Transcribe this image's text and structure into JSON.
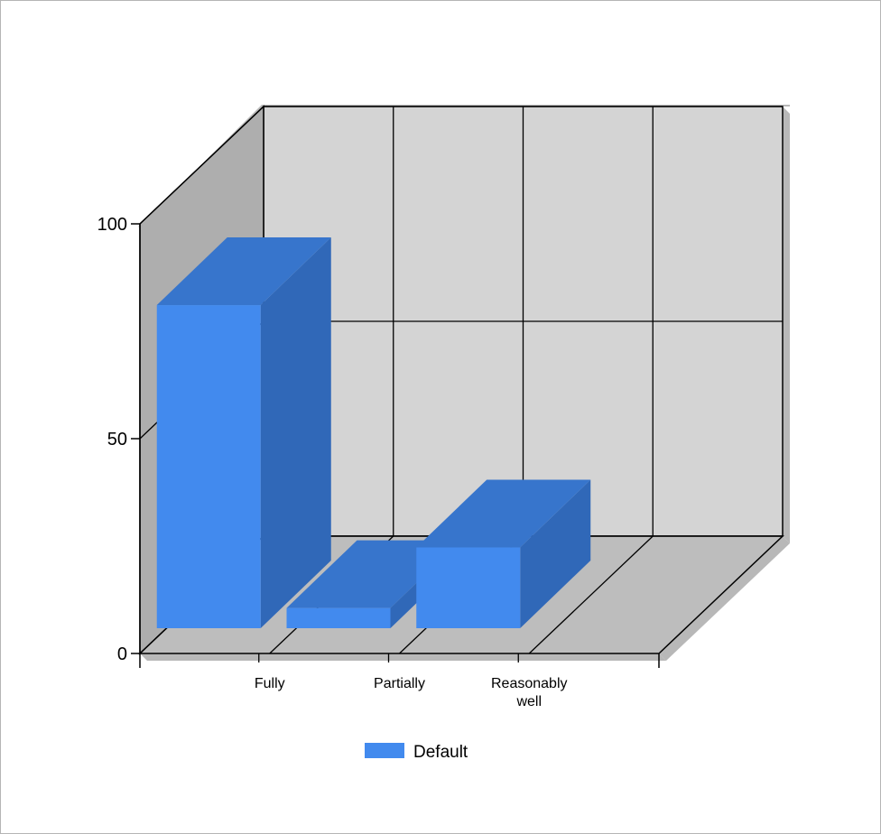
{
  "chart_data": {
    "type": "bar",
    "style": "3d",
    "categories": [
      "Fully",
      "Partially",
      "Reasonably well"
    ],
    "series": [
      {
        "name": "Default",
        "values": [
          80,
          5,
          20
        ]
      }
    ],
    "ylim": [
      0,
      100
    ],
    "yticks": [
      0,
      50,
      100
    ],
    "grid": true,
    "legend_position": "bottom-center",
    "colors": {
      "bar_front": "#428aee",
      "bar_side": "#3068b8",
      "bar_top": "#3775cc",
      "back_wall": "#d4d4d4",
      "side_wall": "#aeaeae",
      "floor": "#bdbdbd",
      "shadow": "#b8b8b8"
    }
  }
}
